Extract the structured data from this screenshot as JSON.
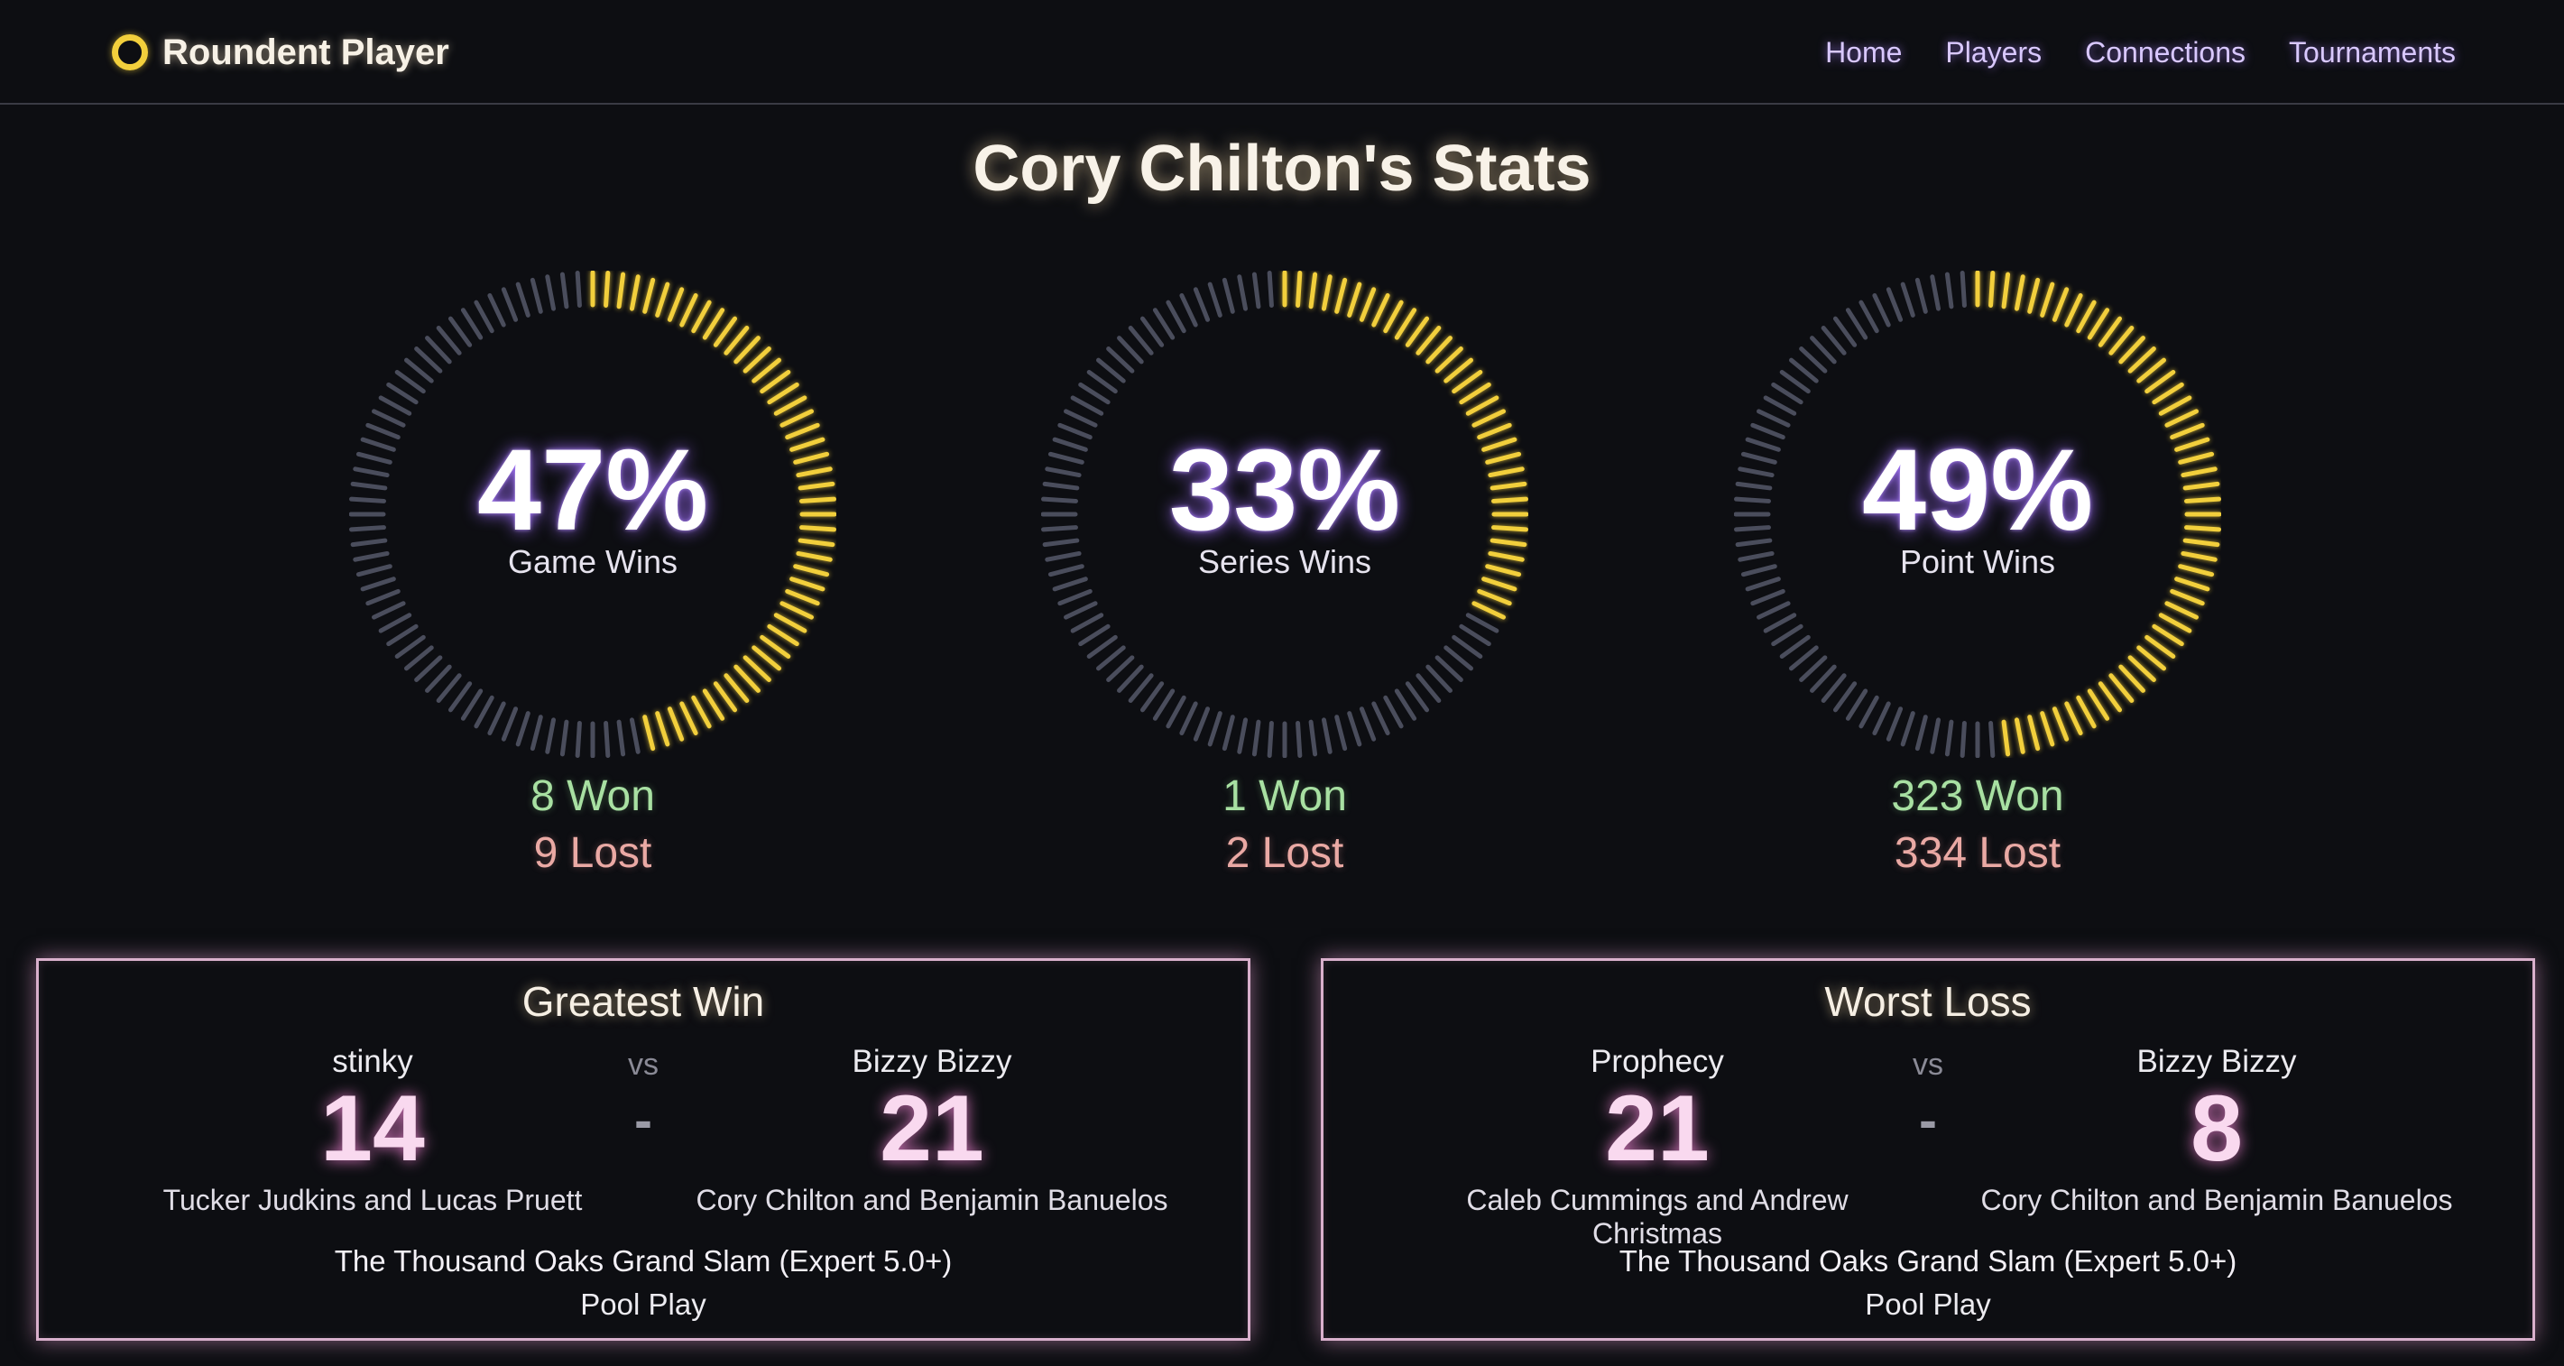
{
  "nav": {
    "brand": "Roundent Player",
    "links": [
      "Home",
      "Players",
      "Connections",
      "Tournaments"
    ]
  },
  "page_title": "Cory Chilton's Stats",
  "colors": {
    "gauge_filled": "#f2cf3c",
    "gauge_empty": "#4a4d5c",
    "won": "#a8e0a2",
    "lost": "#eaa9a4",
    "accent": "#b58cff"
  },
  "stats": [
    {
      "pct_label": "47%",
      "pct": 47,
      "label": "Game Wins",
      "won": "8 Won",
      "lost": "9 Lost"
    },
    {
      "pct_label": "33%",
      "pct": 33,
      "label": "Series Wins",
      "won": "1 Won",
      "lost": "2 Lost"
    },
    {
      "pct_label": "49%",
      "pct": 49,
      "label": "Point Wins",
      "won": "323 Won",
      "lost": "334 Lost"
    }
  ],
  "greatest_win": {
    "title": "Greatest Win",
    "left": {
      "player": "stinky",
      "score": "14",
      "team": "Tucker Judkins and Lucas Pruett"
    },
    "vs": "vs",
    "dash": "-",
    "right": {
      "player": "Bizzy Bizzy",
      "score": "21",
      "team": "Cory Chilton and Benjamin Banuelos"
    },
    "tournament": "The Thousand Oaks Grand Slam (Expert 5.0+)",
    "round": "Pool Play"
  },
  "worst_loss": {
    "title": "Worst Loss",
    "left": {
      "player": "Prophecy",
      "score": "21",
      "team": "Caleb Cummings and Andrew Christmas"
    },
    "vs": "vs",
    "dash": "-",
    "right": {
      "player": "Bizzy Bizzy",
      "score": "8",
      "team": "Cory Chilton and Benjamin Banuelos"
    },
    "tournament": "The Thousand Oaks Grand Slam (Expert 5.0+)",
    "round": "Pool Play"
  }
}
